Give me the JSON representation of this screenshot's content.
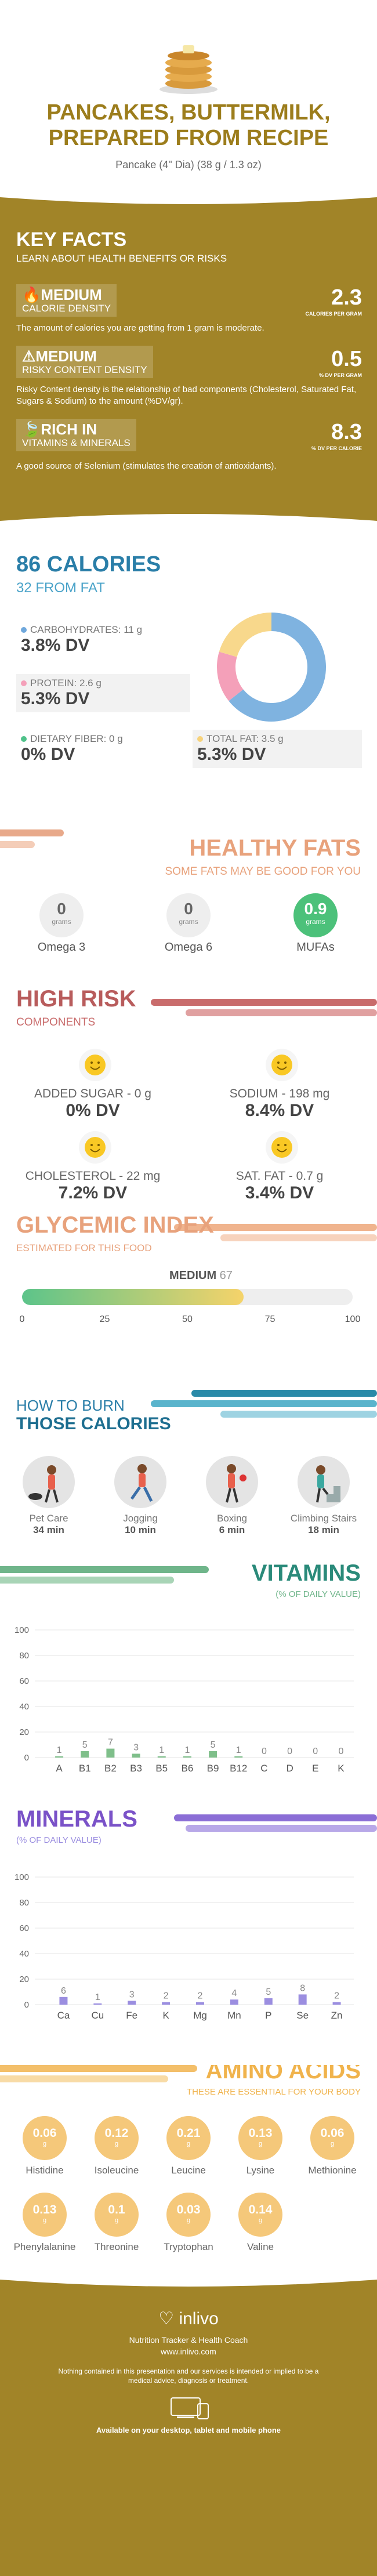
{
  "header": {
    "title": "PANCAKES, BUTTERMILK, PREPARED FROM RECIPE",
    "serving": "Pancake (4\" Dia) (38 g / 1.3 oz)"
  },
  "key_facts": {
    "title": "KEY FACTS",
    "subtitle": "LEARN ABOUT HEALTH BENEFITS OR RISKS",
    "items": [
      {
        "level": "MEDIUM",
        "label": "CALORIE DENSITY",
        "value": "2.3",
        "unit": "CALORIES PER GRAM",
        "desc": "The amount of calories you are getting from 1 gram is moderate."
      },
      {
        "level": "MEDIUM",
        "label": "RISKY CONTENT DENSITY",
        "value": "0.5",
        "unit": "% DV PER GRAM",
        "desc": "Risky Content density is the relationship of bad components (Cholesterol, Saturated Fat, Sugars & Sodium) to the amount (%DV/gr)."
      },
      {
        "level": "RICH  IN",
        "label": "VITAMINS & MINERALS",
        "value": "8.3",
        "unit": "% DV PER CALORIE",
        "desc": "A good source of Selenium (stimulates the creation of antioxidants)."
      }
    ]
  },
  "calories": {
    "title": "86 CALORIES",
    "subtitle": "32 FROM FAT",
    "nutrients": [
      {
        "label": "CARBOHYDRATES: 11 g",
        "dv": "3.8% DV",
        "color": "#6fa8dc"
      },
      {
        "label": "PROTEIN: 2.6 g",
        "dv": "5.3% DV",
        "color": "#f4a0b9"
      },
      {
        "label": "DIETARY FIBER: 0 g",
        "dv": "0% DV",
        "color": "#4fc28a"
      },
      {
        "label": "TOTAL FAT: 3.5 g",
        "dv": "5.3% DV",
        "color": "#f7d27a"
      }
    ],
    "donut": [
      {
        "name": "carbohydrates",
        "value": 11,
        "color": "#7fb3e0"
      },
      {
        "name": "protein",
        "value": 2.6,
        "color": "#f4a0b9"
      },
      {
        "name": "fat",
        "value": 3.5,
        "color": "#f8d88c"
      }
    ]
  },
  "healthy_fats": {
    "title": "HEALTHY FATS",
    "subtitle": "SOME FATS MAY BE GOOD FOR YOU",
    "unit": "grams",
    "items": [
      {
        "name": "Omega 3",
        "value": "0"
      },
      {
        "name": "Omega 6",
        "value": "0"
      },
      {
        "name": "MUFAs",
        "value": "0.9"
      }
    ]
  },
  "high_risk": {
    "title": "HIGH RISK",
    "subtitle": "COMPONENTS",
    "items": [
      {
        "label": "ADDED SUGAR - 0 g",
        "dv": "0% DV"
      },
      {
        "label": "SODIUM - 198 mg",
        "dv": "8.4% DV"
      },
      {
        "label": "CHOLESTEROL - 22 mg",
        "dv": "7.2% DV"
      },
      {
        "label": "SAT. FAT - 0.7 g",
        "dv": "3.4% DV"
      }
    ]
  },
  "glycemic": {
    "title": "GLYCEMIC INDEX",
    "subtitle": "ESTIMATED FOR THIS FOOD",
    "level": "MEDIUM",
    "value": 67,
    "value_label": "67",
    "ticks": [
      "0",
      "25",
      "50",
      "75",
      "100"
    ]
  },
  "burn": {
    "title1": "HOW TO BURN",
    "title2": "THOSE CALORIES",
    "items": [
      {
        "name": "Pet Care",
        "time": "34 min"
      },
      {
        "name": "Jogging",
        "time": "10 min"
      },
      {
        "name": "Boxing",
        "time": "6 min"
      },
      {
        "name": "Climbing Stairs",
        "time": "18 min"
      }
    ]
  },
  "vitamins": {
    "title": "VITAMINS",
    "subtitle": "(% OF DAILY VALUE)",
    "chart_data": {
      "type": "bar",
      "categories": [
        "A",
        "B1",
        "B2",
        "B3",
        "B5",
        "B6",
        "B9",
        "B12",
        "C",
        "D",
        "E",
        "K"
      ],
      "values": [
        1,
        5,
        7,
        3,
        1,
        1,
        5,
        1,
        0,
        0,
        0,
        0
      ],
      "labels": [
        "1",
        "5",
        "7",
        "3",
        "1",
        "1",
        "5",
        "1",
        "0",
        "0",
        "0",
        "0"
      ],
      "yticks": [
        "0",
        "20",
        "40",
        "60",
        "80",
        "100"
      ],
      "ylim": [
        0,
        100
      ],
      "color": "#7fbf8a"
    }
  },
  "minerals": {
    "title": "MINERALS",
    "subtitle": "(% OF DAILY VALUE)",
    "chart_data": {
      "type": "bar",
      "categories": [
        "Ca",
        "Cu",
        "Fe",
        "K",
        "Mg",
        "Mn",
        "P",
        "Se",
        "Zn"
      ],
      "values": [
        6,
        1,
        3,
        2,
        2,
        4,
        5,
        8,
        2
      ],
      "labels": [
        "6",
        "1",
        "3",
        "2",
        "2",
        "4",
        "5",
        "8",
        "2"
      ],
      "yticks": [
        "0",
        "20",
        "40",
        "60",
        "80",
        "100"
      ],
      "ylim": [
        0,
        100
      ],
      "color": "#9b8ee0"
    }
  },
  "amino": {
    "title": "AMINO ACIDS",
    "subtitle": "THESE ARE ESSENTIAL FOR YOUR BODY",
    "unit": "g",
    "items": [
      {
        "name": "Histidine",
        "value": "0.06"
      },
      {
        "name": "Isoleucine",
        "value": "0.12"
      },
      {
        "name": "Leucine",
        "value": "0.21"
      },
      {
        "name": "Lysine",
        "value": "0.13"
      },
      {
        "name": "Methionine",
        "value": "0.06"
      },
      {
        "name": "Phenylalanine",
        "value": "0.13"
      },
      {
        "name": "Threonine",
        "value": "0.1"
      },
      {
        "name": "Tryptophan",
        "value": "0.03"
      },
      {
        "name": "Valine",
        "value": "0.14"
      }
    ]
  },
  "footer": {
    "brand": "inlivo",
    "tagline": "Nutrition Tracker & Health Coach",
    "site": "www.inlivo.com",
    "disclaimer": "Nothing contained in this presentation and our services is intended or implied to be a medical advice, diagnosis or treatment.",
    "available": "Available on your desktop, tablet and mobile phone"
  }
}
